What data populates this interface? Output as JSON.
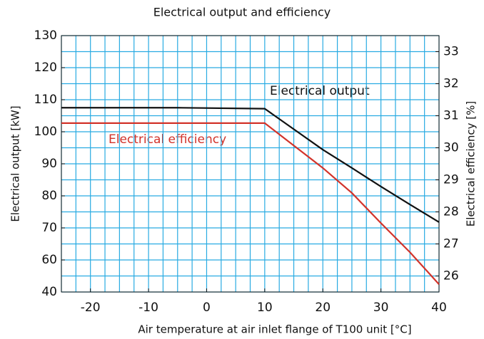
{
  "chart_data": {
    "type": "line",
    "title": "Electrical output and efficiency",
    "x_label": "Air temperature at air inlet flange of T100 unit [°C]",
    "y_label": "Electrical output [kW]",
    "y2_label": "Electrical  efficiency [%]",
    "x": [
      -25,
      -5,
      10,
      20,
      25,
      30,
      35,
      40
    ],
    "series": [
      {
        "name": "Electrical output",
        "color": "#111111",
        "values": [
          107.5,
          107.5,
          107.2,
          94.4,
          88.7,
          82.9,
          77.3,
          71.8
        ]
      },
      {
        "name": "Electrical efficiency",
        "color": "#d2332a",
        "axis": "y2",
        "values": [
          30.77,
          30.77,
          30.77,
          29.37,
          28.59,
          27.65,
          26.74,
          25.74
        ]
      }
    ],
    "xlim": [
      -25,
      40
    ],
    "xticks": [
      -20,
      -10,
      0,
      10,
      20,
      30,
      40
    ],
    "ylim": [
      40,
      130
    ],
    "yticks": [
      40,
      60,
      70,
      80,
      90,
      100,
      110,
      120,
      130
    ],
    "y2lim": [
      25.5,
      33.5
    ],
    "y2ticks": [
      26,
      27,
      28,
      29,
      30,
      31,
      32,
      33
    ],
    "grid": true,
    "grid_color": "#29abe2"
  }
}
